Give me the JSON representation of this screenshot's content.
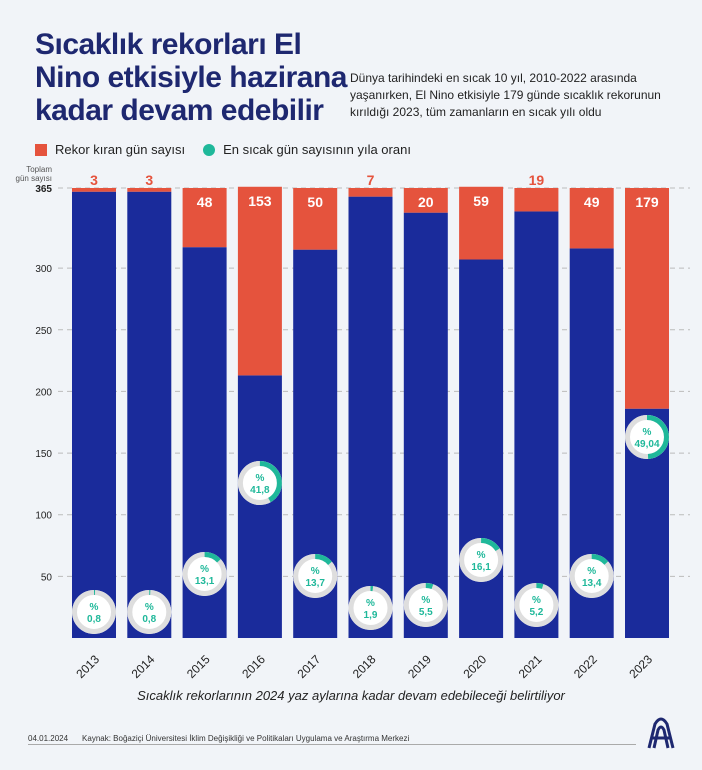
{
  "title": "Sıcaklık rekorları El Nino etkisiyle hazirana kadar devam edebilir",
  "subtitle": "Dünya tarihindeki en sıcak 10 yıl, 2010-2022 arasında yaşanırken, El Nino etkisiyle 179 günde sıcaklık rekorunun kırıldığı 2023, tüm zamanların en sıcak yılı oldu",
  "note": "Sıcaklık rekorlarının 2024 yaz aylarına kadar devam edebileceği belirtiliyor",
  "date": "04.01.2024",
  "source": "Kaynak: Boğaziçi Üniversitesi İklim Değişikliği ve Politikaları Uygulama ve Araştırma Merkezi",
  "logo_text": "AA",
  "colors": {
    "record": "#e5533d",
    "days": "#1a2b9b",
    "ratio": "#1fb89a"
  },
  "chart_data": {
    "type": "bar",
    "stacked": true,
    "ylabel": "Toplam gün sayısı",
    "ylim": [
      0,
      365
    ],
    "yticks": [
      50,
      100,
      150,
      200,
      250,
      300,
      365
    ],
    "grid": true,
    "legend": [
      "Rekor kıran gün sayısı",
      "En sıcak gün sayısının yıla oranı"
    ],
    "categories": [
      "2013",
      "2014",
      "2015",
      "2016",
      "2017",
      "2018",
      "2019",
      "2020",
      "2021",
      "2022",
      "2023"
    ],
    "total_days": [
      365,
      365,
      365,
      366,
      365,
      365,
      365,
      366,
      365,
      365,
      365
    ],
    "series": [
      {
        "name": "Rekor kıran gün sayısı",
        "values": [
          3,
          3,
          48,
          153,
          50,
          7,
          20,
          59,
          19,
          49,
          179
        ]
      }
    ],
    "ratio_percent": [
      0.8,
      0.8,
      13.1,
      41.8,
      13.7,
      1.9,
      5.5,
      16.1,
      5.2,
      13.4,
      49.04
    ],
    "ratio_labels": [
      "0,8",
      "0,8",
      "13,1",
      "41,8",
      "13,7",
      "1,9",
      "5,5",
      "16,1",
      "5,2",
      "13,4",
      "49,04"
    ],
    "percent_sign": "%"
  }
}
